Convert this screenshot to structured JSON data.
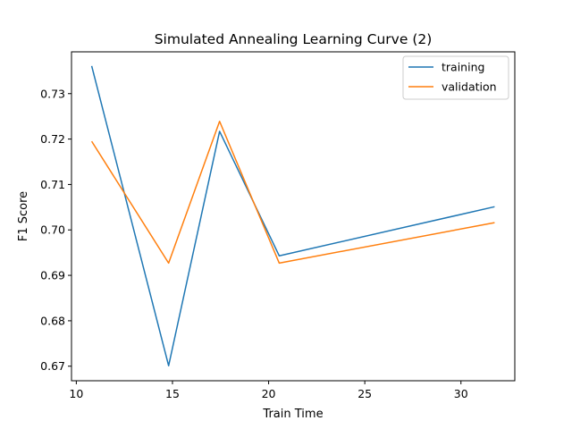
{
  "chart_data": {
    "type": "line",
    "title": "Simulated Annealing Learning Curve (2)",
    "xlabel": "Train Time",
    "ylabel": "F1 Score",
    "xlim": [
      9.75,
      32.8
    ],
    "ylim": [
      0.6668,
      0.7392
    ],
    "xticks": [
      10,
      15,
      20,
      25,
      30
    ],
    "yticks": [
      0.67,
      0.68,
      0.69,
      0.7,
      0.71,
      0.72,
      0.73
    ],
    "ytick_labels": [
      "0.67",
      "0.68",
      "0.69",
      "0.70",
      "0.71",
      "0.72",
      "0.73"
    ],
    "grid": false,
    "legend_position": "upper right",
    "series": [
      {
        "name": "training",
        "color": "#1f77b4",
        "x": [
          10.8,
          14.8,
          17.45,
          20.55,
          31.75
        ],
        "y": [
          0.7361,
          0.6701,
          0.7217,
          0.6943,
          0.7051
        ]
      },
      {
        "name": "validation",
        "color": "#ff7f0e",
        "x": [
          10.8,
          14.8,
          17.45,
          20.55,
          31.75
        ],
        "y": [
          0.7195,
          0.6927,
          0.7239,
          0.6927,
          0.7016
        ]
      }
    ]
  }
}
